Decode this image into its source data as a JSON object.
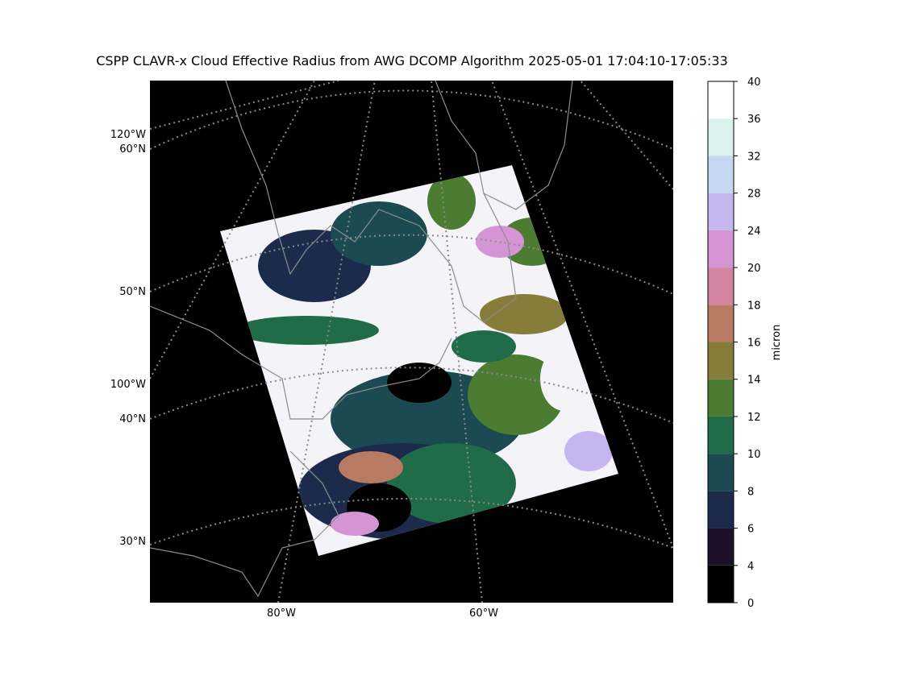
{
  "title": "CSPP CLAVR-x Cloud Effective Radius from AWG DCOMP Algorithm 2025-05-01 17:04:10-17:05:33",
  "left_labels": [
    "120°W",
    "60°N",
    "50°N",
    "100°W",
    "40°N",
    "30°N"
  ],
  "bottom_labels": [
    "80°W",
    "60°W"
  ],
  "colorbar": {
    "label": "micron",
    "ticks": [
      0,
      4,
      6,
      8,
      10,
      12,
      14,
      16,
      18,
      20,
      24,
      28,
      32,
      36,
      40
    ],
    "colors": [
      "#000000",
      "#1e1028",
      "#1c2a4c",
      "#1b4a52",
      "#206c48",
      "#4c7c32",
      "#877d3a",
      "#b87a62",
      "#d483a0",
      "#d595d4",
      "#c6b6ef",
      "#c4d8f2",
      "#daf1ec",
      "#ffffff"
    ]
  }
}
